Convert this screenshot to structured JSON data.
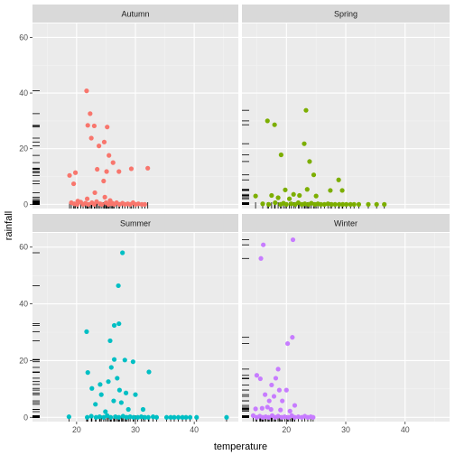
{
  "chart_data": {
    "type": "scatter",
    "xlabel": "temperature",
    "ylabel": "rainfall",
    "xlim": [
      12.5,
      47.5
    ],
    "ylim": [
      -1.5,
      65
    ],
    "x_ticks": [
      20,
      30,
      40
    ],
    "y_ticks": [
      0,
      20,
      40,
      60
    ],
    "grid": true,
    "rug": true,
    "legend": "none",
    "panels": [
      {
        "name": "Autumn",
        "color": "#F8766D",
        "points": [
          [
            21.7,
            40.8
          ],
          [
            22.3,
            32.6
          ],
          [
            21.9,
            28.4
          ],
          [
            23.0,
            28.2
          ],
          [
            22.5,
            23.8
          ],
          [
            25.2,
            27.8
          ],
          [
            24.7,
            22.4
          ],
          [
            23.8,
            21.0
          ],
          [
            25.5,
            17.6
          ],
          [
            26.2,
            15.0
          ],
          [
            23.5,
            12.6
          ],
          [
            19.8,
            11.4
          ],
          [
            18.8,
            10.4
          ],
          [
            19.5,
            7.4
          ],
          [
            25.1,
            11.8
          ],
          [
            27.2,
            11.8
          ],
          [
            29.3,
            12.8
          ],
          [
            32.1,
            13.0
          ],
          [
            24.6,
            8.4
          ],
          [
            23.1,
            4.2
          ],
          [
            21.8,
            2.0
          ],
          [
            25.7,
            1.4
          ],
          [
            20.2,
            1.2
          ],
          [
            24.8,
            2.6
          ],
          [
            26.1,
            0.4
          ],
          [
            19.1,
            0.6
          ],
          [
            19.6,
            0.2
          ],
          [
            20.1,
            0.0
          ],
          [
            20.7,
            0.8
          ],
          [
            21.1,
            0.0
          ],
          [
            21.5,
            0.4
          ],
          [
            22.0,
            0.0
          ],
          [
            22.6,
            0.6
          ],
          [
            23.0,
            0.0
          ],
          [
            23.4,
            1.0
          ],
          [
            24.0,
            0.2
          ],
          [
            24.3,
            0.0
          ],
          [
            25.0,
            0.6
          ],
          [
            25.4,
            0.0
          ],
          [
            25.9,
            0.2
          ],
          [
            26.4,
            0.0
          ],
          [
            26.8,
            0.6
          ],
          [
            27.3,
            0.0
          ],
          [
            27.8,
            0.4
          ],
          [
            28.2,
            0.0
          ],
          [
            28.7,
            0.2
          ],
          [
            29.1,
            0.0
          ],
          [
            29.6,
            0.6
          ],
          [
            30.0,
            0.0
          ],
          [
            30.5,
            0.2
          ],
          [
            31.1,
            0.0
          ],
          [
            31.6,
            0.0
          ]
        ]
      },
      {
        "name": "Spring",
        "color": "#7CAE00",
        "points": [
          [
            23.3,
            33.8
          ],
          [
            16.8,
            30.0
          ],
          [
            18.0,
            28.6
          ],
          [
            23.0,
            21.8
          ],
          [
            23.9,
            15.4
          ],
          [
            19.1,
            17.8
          ],
          [
            24.6,
            10.6
          ],
          [
            28.8,
            8.8
          ],
          [
            29.4,
            5.0
          ],
          [
            27.4,
            5.0
          ],
          [
            23.5,
            5.4
          ],
          [
            19.8,
            5.2
          ],
          [
            22.2,
            3.2
          ],
          [
            25.0,
            3.0
          ],
          [
            14.8,
            3.0
          ],
          [
            17.5,
            3.2
          ],
          [
            18.6,
            2.4
          ],
          [
            20.5,
            2.0
          ],
          [
            21.2,
            3.6
          ],
          [
            16.0,
            0.2
          ],
          [
            17.0,
            0.0
          ],
          [
            18.1,
            0.6
          ],
          [
            19.0,
            0.0
          ],
          [
            19.5,
            0.4
          ],
          [
            20.0,
            0.0
          ],
          [
            20.8,
            0.2
          ],
          [
            21.5,
            0.0
          ],
          [
            22.0,
            0.6
          ],
          [
            22.6,
            0.0
          ],
          [
            23.1,
            0.2
          ],
          [
            23.7,
            0.0
          ],
          [
            24.2,
            0.4
          ],
          [
            24.8,
            0.0
          ],
          [
            25.3,
            0.2
          ],
          [
            25.8,
            0.0
          ],
          [
            26.4,
            0.0
          ],
          [
            27.0,
            0.2
          ],
          [
            27.6,
            0.0
          ],
          [
            28.2,
            0.0
          ],
          [
            28.9,
            0.0
          ],
          [
            29.5,
            0.0
          ],
          [
            30.1,
            0.0
          ],
          [
            30.8,
            0.0
          ],
          [
            31.4,
            0.0
          ],
          [
            32.2,
            0.0
          ],
          [
            33.8,
            0.0
          ],
          [
            35.2,
            0.0
          ],
          [
            36.5,
            0.0
          ]
        ]
      },
      {
        "name": "Summer",
        "color": "#00BFC4",
        "points": [
          [
            27.8,
            58.0
          ],
          [
            27.1,
            46.4
          ],
          [
            27.2,
            33.0
          ],
          [
            26.4,
            32.4
          ],
          [
            21.7,
            30.2
          ],
          [
            25.7,
            27.0
          ],
          [
            26.4,
            20.4
          ],
          [
            28.2,
            20.2
          ],
          [
            29.6,
            19.6
          ],
          [
            32.3,
            16.0
          ],
          [
            21.9,
            15.8
          ],
          [
            25.9,
            17.6
          ],
          [
            26.9,
            13.8
          ],
          [
            25.4,
            12.6
          ],
          [
            24.0,
            11.6
          ],
          [
            27.3,
            9.6
          ],
          [
            22.6,
            10.2
          ],
          [
            28.4,
            8.6
          ],
          [
            30.0,
            8.0
          ],
          [
            24.2,
            8.0
          ],
          [
            26.3,
            5.8
          ],
          [
            27.6,
            5.2
          ],
          [
            23.2,
            4.6
          ],
          [
            28.8,
            2.8
          ],
          [
            31.3,
            2.8
          ],
          [
            24.9,
            2.0
          ],
          [
            18.7,
            0.2
          ],
          [
            21.8,
            0.0
          ],
          [
            22.5,
            0.4
          ],
          [
            23.3,
            0.0
          ],
          [
            23.9,
            0.2
          ],
          [
            24.6,
            0.0
          ],
          [
            25.2,
            0.6
          ],
          [
            25.8,
            0.0
          ],
          [
            26.6,
            0.2
          ],
          [
            27.2,
            0.0
          ],
          [
            27.9,
            0.4
          ],
          [
            28.5,
            0.0
          ],
          [
            29.1,
            0.2
          ],
          [
            29.7,
            0.0
          ],
          [
            30.4,
            0.0
          ],
          [
            31.0,
            0.2
          ],
          [
            31.6,
            0.0
          ],
          [
            32.2,
            0.0
          ],
          [
            33.0,
            0.2
          ],
          [
            33.6,
            0.0
          ],
          [
            35.3,
            0.0
          ],
          [
            36.0,
            0.0
          ],
          [
            36.6,
            0.0
          ],
          [
            37.3,
            0.0
          ],
          [
            38.0,
            0.0
          ],
          [
            38.6,
            0.0
          ],
          [
            39.3,
            0.0
          ],
          [
            40.4,
            0.0
          ],
          [
            45.5,
            0.0
          ]
        ]
      },
      {
        "name": "Winter",
        "color": "#C77CFF",
        "points": [
          [
            21.1,
            62.6
          ],
          [
            16.1,
            60.8
          ],
          [
            15.7,
            56.0
          ],
          [
            21.0,
            28.2
          ],
          [
            20.2,
            26.0
          ],
          [
            18.6,
            17.0
          ],
          [
            15.0,
            14.8
          ],
          [
            15.6,
            13.6
          ],
          [
            18.2,
            13.8
          ],
          [
            17.5,
            11.4
          ],
          [
            18.8,
            9.6
          ],
          [
            20.0,
            9.6
          ],
          [
            16.4,
            8.0
          ],
          [
            17.9,
            7.4
          ],
          [
            17.1,
            5.8
          ],
          [
            19.3,
            5.8
          ],
          [
            16.8,
            3.6
          ],
          [
            21.4,
            4.2
          ],
          [
            14.8,
            3.0
          ],
          [
            15.9,
            3.2
          ],
          [
            17.4,
            2.8
          ],
          [
            19.0,
            2.6
          ],
          [
            20.6,
            2.2
          ],
          [
            14.4,
            0.6
          ],
          [
            15.0,
            0.0
          ],
          [
            15.5,
            0.4
          ],
          [
            16.0,
            0.0
          ],
          [
            16.5,
            0.2
          ],
          [
            17.0,
            0.0
          ],
          [
            17.6,
            0.6
          ],
          [
            18.1,
            0.0
          ],
          [
            18.6,
            0.4
          ],
          [
            19.2,
            0.0
          ],
          [
            19.7,
            0.2
          ],
          [
            20.3,
            0.0
          ],
          [
            20.9,
            0.6
          ],
          [
            21.4,
            0.0
          ],
          [
            22.0,
            0.2
          ],
          [
            22.6,
            0.0
          ],
          [
            23.1,
            0.4
          ],
          [
            23.6,
            0.0
          ],
          [
            24.1,
            0.2
          ],
          [
            24.5,
            0.0
          ]
        ]
      }
    ]
  }
}
